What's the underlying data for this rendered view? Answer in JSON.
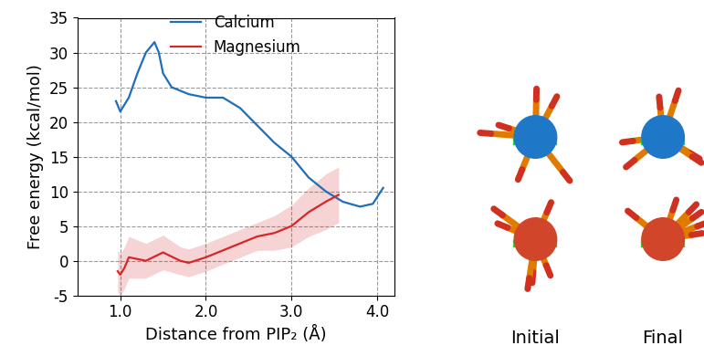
{
  "chart_data": {
    "type": "line",
    "x_label": "Distance from PIP₂ (Å)",
    "y_label": "Free energy (kcal/mol)",
    "xlim": [
      0.5,
      4.2
    ],
    "xticks": [
      {
        "value": 1,
        "label": "1.0"
      },
      {
        "value": 2,
        "label": "2.0"
      },
      {
        "value": 3,
        "label": "3.0"
      },
      {
        "value": 4,
        "label": "4.0"
      }
    ],
    "ylim": [
      -5,
      35
    ],
    "yticks": [
      -5,
      0,
      5,
      10,
      15,
      20,
      25,
      30,
      35
    ],
    "grid": true,
    "legend": "upper center",
    "series": [
      {
        "name": "Calcium",
        "color": "#1f6fb8",
        "x": [
          0.95,
          1.0,
          1.1,
          1.2,
          1.3,
          1.4,
          1.45,
          1.5,
          1.6,
          1.8,
          2.0,
          2.2,
          2.4,
          2.6,
          2.8,
          2.9,
          3.0,
          3.2,
          3.4,
          3.6,
          3.8,
          3.95,
          4.07
        ],
        "values": [
          23,
          21.5,
          23.5,
          27,
          30,
          31.5,
          30,
          27,
          25,
          24,
          23.5,
          23.5,
          22,
          19.5,
          17,
          16,
          15,
          12,
          10,
          8.5,
          7.8,
          8.2,
          10.5
        ]
      },
      {
        "name": "Magnesium",
        "color": "#d62728",
        "x": [
          0.97,
          1.0,
          1.05,
          1.1,
          1.3,
          1.5,
          1.7,
          1.8,
          2.0,
          2.3,
          2.6,
          2.8,
          3.0,
          3.2,
          3.4,
          3.55
        ],
        "values": [
          -1.5,
          -2,
          -1,
          0.5,
          0,
          1.2,
          0,
          -0.3,
          0.5,
          2,
          3.5,
          4,
          5,
          7,
          8.5,
          9.5
        ],
        "error": [
          3,
          3,
          3,
          3,
          2.5,
          2.5,
          2,
          2,
          2,
          2,
          2,
          2.5,
          3,
          3.5,
          4,
          4
        ]
      }
    ],
    "annotations": [
      "Initial",
      "Final"
    ]
  }
}
